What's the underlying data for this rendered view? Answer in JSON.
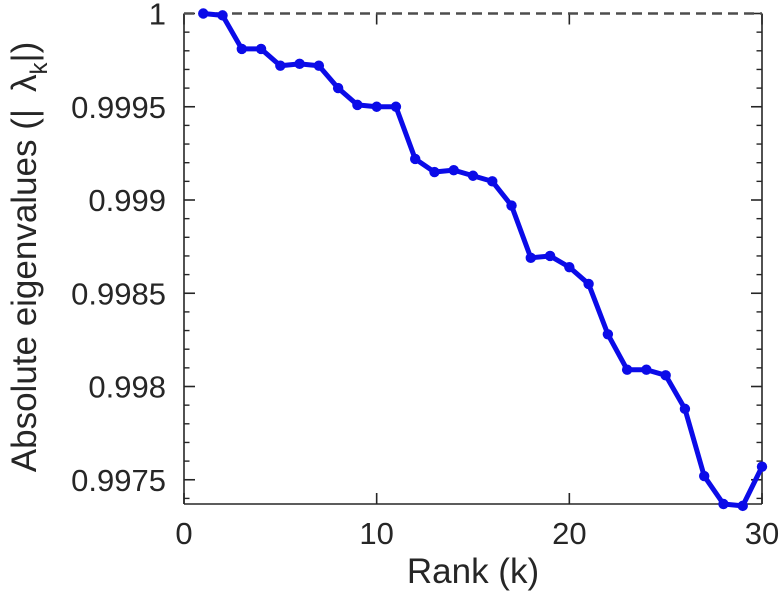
{
  "chart_data": {
    "type": "line",
    "title": "",
    "xlabel": "Rank (k)",
    "ylabel_parts": {
      "prefix": "Absolute eigenvalues (|",
      "symbol": "λ",
      "subscript": "k",
      "suffix": "|)"
    },
    "x": [
      1,
      2,
      3,
      4,
      5,
      6,
      7,
      8,
      9,
      10,
      11,
      12,
      13,
      14,
      15,
      16,
      17,
      18,
      19,
      20,
      21,
      22,
      23,
      24,
      25,
      26,
      27,
      28,
      29,
      30
    ],
    "series": [
      {
        "name": "absolute-eigenvalues",
        "values": [
          1.0,
          0.99999,
          0.99981,
          0.99981,
          0.99972,
          0.99973,
          0.99972,
          0.9996,
          0.99951,
          0.9995,
          0.9995,
          0.99922,
          0.99915,
          0.99916,
          0.99913,
          0.9991,
          0.99897,
          0.99869,
          0.9987,
          0.99864,
          0.99855,
          0.99828,
          0.99809,
          0.99809,
          0.99806,
          0.99788,
          0.99752,
          0.99737,
          0.99736,
          0.99757
        ]
      }
    ],
    "xlim": [
      0,
      30
    ],
    "ylim": [
      0.99737,
      1.0
    ],
    "x_ticks": [
      0,
      10,
      20,
      30
    ],
    "x_tick_labels": [
      "0",
      "10",
      "20",
      "30"
    ],
    "y_ticks": [
      1,
      0.9995,
      0.999,
      0.9985,
      0.998,
      0.9975
    ],
    "y_tick_labels": [
      "1",
      "0.9995",
      "0.999",
      "0.9985",
      "0.998",
      "0.9975"
    ],
    "y_minor_step": 0.0001,
    "grid": false,
    "legend": null,
    "marker": "circle",
    "reference_line": {
      "y": 1.0,
      "style": "dashed"
    }
  },
  "style": {
    "line_color": "#0b0be8",
    "marker_color": "#0b0be8",
    "reference_line_color": "#4d4d4d",
    "axis_color": "#262626",
    "text_color": "#262626",
    "background": "#ffffff"
  }
}
